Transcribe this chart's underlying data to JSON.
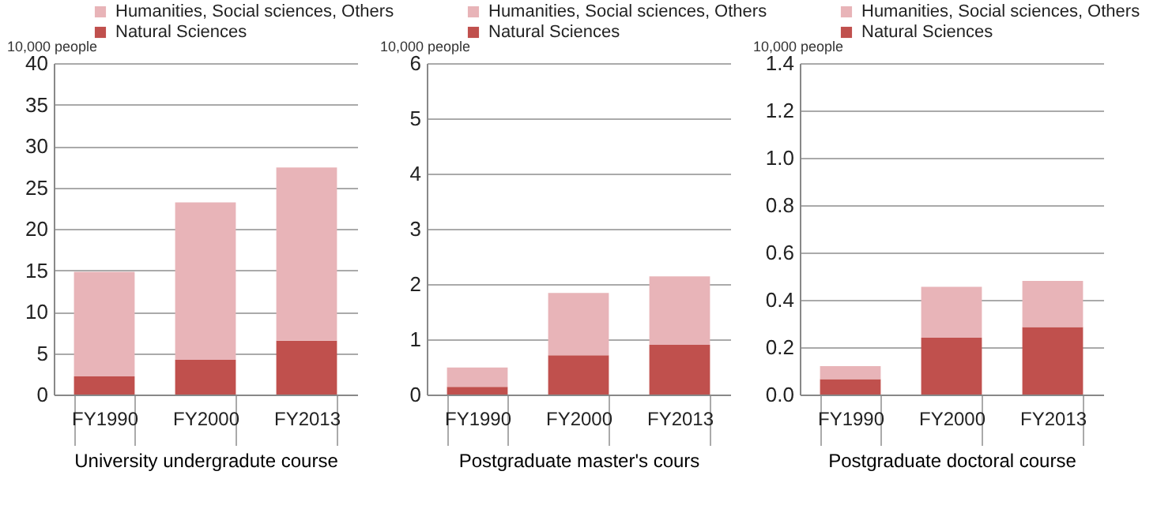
{
  "chart_data": [
    {
      "type": "bar",
      "stacked": true,
      "ylabel": "10,000 people",
      "xlabel": "University undergradute course",
      "categories": [
        "FY1990",
        "FY2000",
        "FY2013"
      ],
      "ylim": [
        0,
        40
      ],
      "yticks": [
        0,
        5,
        10,
        15,
        20,
        25,
        30,
        35,
        40
      ],
      "grid": "y",
      "legend": "top",
      "series": [
        {
          "name": "Natural Sciences",
          "color": "#c0504d",
          "values": [
            2.2,
            4.2,
            6.5
          ]
        },
        {
          "name": "Humanities, Social sciences, Others",
          "color": "#e8b4b8",
          "values": [
            12.6,
            19.0,
            20.9
          ]
        }
      ]
    },
    {
      "type": "bar",
      "stacked": true,
      "ylabel": "10,000 people",
      "xlabel": "Postgraduate master's cours",
      "categories": [
        "FY1990",
        "FY2000",
        "FY2013"
      ],
      "ylim": [
        0,
        6
      ],
      "yticks": [
        0,
        1,
        2,
        3,
        4,
        5,
        6
      ],
      "grid": "y",
      "legend": "top",
      "series": [
        {
          "name": "Natural Sciences",
          "color": "#c0504d",
          "values": [
            0.14,
            0.71,
            0.9
          ]
        },
        {
          "name": "Humanities, Social sciences, Others",
          "color": "#e8b4b8",
          "values": [
            0.35,
            1.13,
            1.24
          ]
        }
      ]
    },
    {
      "type": "bar",
      "stacked": true,
      "ylabel": "10,000 people",
      "xlabel": "Postgraduate doctoral course",
      "categories": [
        "FY1990",
        "FY2000",
        "FY2013"
      ],
      "ylim": [
        0,
        1.4
      ],
      "yticks": [
        {
          "value": 0,
          "label": "0.0"
        },
        0.2,
        0.4,
        0.6,
        0.8,
        {
          "value": 1,
          "label": "1.0"
        },
        1.2,
        1.4
      ],
      "grid": "y",
      "legend": "top",
      "series": [
        {
          "name": "Natural Sciences",
          "color": "#c0504d",
          "values": [
            0.065,
            0.24,
            0.285
          ]
        },
        {
          "name": "Humanities, Social sciences, Others",
          "color": "#e8b4b8",
          "values": [
            0.055,
            0.215,
            0.195
          ]
        }
      ]
    }
  ]
}
